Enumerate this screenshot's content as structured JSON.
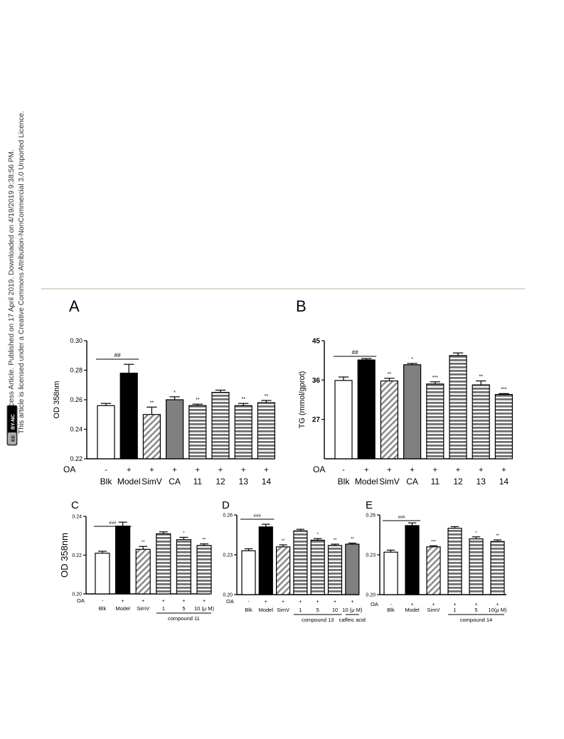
{
  "sidebar": {
    "line1": "Open Access Article. Published on 17 April 2019. Downloaded on 4/19/2019 9:38:56 PM.",
    "line2": "This article is licensed under a Creative Commons Attribution-NonCommercial 3.0 Unported Licence.",
    "badge_cc": "cc",
    "badge_text": "BY-NC"
  },
  "colors": {
    "white": "#ffffff",
    "black": "#000000",
    "gray": "#808080",
    "hatch": "#9a9a9a",
    "stripe": "#7a7a7a"
  },
  "chart_data": [
    {
      "panel": "A",
      "type": "bar",
      "ylabel": "OD 358nm",
      "ylim": [
        0.22,
        0.3
      ],
      "yticks": [
        "0.22",
        "0.24",
        "0.26",
        "0.28",
        "0.30"
      ],
      "categories": [
        "Blk",
        "Model",
        "SimV",
        "CA",
        "11",
        "12",
        "13",
        "14"
      ],
      "oa_label": "OA",
      "oa": [
        "-",
        "+",
        "+",
        "+",
        "+",
        "+",
        "+",
        "+"
      ],
      "values": [
        0.256,
        0.278,
        0.25,
        0.26,
        0.256,
        0.265,
        0.256,
        0.258
      ],
      "errors": [
        0.0015,
        0.006,
        0.005,
        0.002,
        0.001,
        0.0015,
        0.0015,
        0.0015
      ],
      "fills": [
        "white",
        "black",
        "hatch",
        "gray",
        "stripe",
        "stripe",
        "stripe",
        "stripe"
      ],
      "sig": [
        "",
        "",
        "**",
        "*",
        "**",
        "",
        "**",
        "**"
      ],
      "bracket": {
        "label": "##",
        "from": 0,
        "to": 1
      }
    },
    {
      "panel": "B",
      "type": "bar",
      "ylabel": "TG (mmol/gprot)",
      "ylim": [
        18,
        45
      ],
      "yticks": [
        "27",
        "36",
        "45"
      ],
      "categories": [
        "Blk",
        "Model",
        "SimV",
        "CA",
        "11",
        "12",
        "13",
        "14"
      ],
      "oa_label": "OA",
      "oa": [
        "-",
        "+",
        "+",
        "+",
        "+",
        "+",
        "+",
        "+"
      ],
      "values": [
        35.9,
        40.6,
        35.8,
        39.5,
        35.1,
        41.6,
        34.9,
        32.7
      ],
      "errors": [
        0.8,
        0.3,
        0.6,
        0.3,
        0.5,
        0.6,
        0.9,
        0.2
      ],
      "fills": [
        "white",
        "black",
        "hatch",
        "gray",
        "stripe",
        "stripe",
        "stripe",
        "stripe"
      ],
      "sig": [
        "",
        "",
        "**",
        "*",
        "***",
        "",
        "**",
        "***"
      ],
      "bracket": {
        "label": "##",
        "from": 0,
        "to": 1
      }
    },
    {
      "panel": "C",
      "type": "bar",
      "ylabel": "OD 358nm",
      "ylim": [
        0.2,
        0.24
      ],
      "yticks": [
        "0.20",
        "0.22",
        "0.24"
      ],
      "categories": [
        "Blk",
        "Model",
        "SimV",
        "1",
        "5",
        "10 (μ M)"
      ],
      "oa_label": "OA",
      "oa": [
        "-",
        "+",
        "+",
        "+",
        "+",
        "+"
      ],
      "values": [
        0.221,
        0.235,
        0.223,
        0.231,
        0.228,
        0.225
      ],
      "errors": [
        0.001,
        0.002,
        0.0015,
        0.001,
        0.0012,
        0.0008
      ],
      "fills": [
        "white",
        "black",
        "hatch",
        "stripe",
        "stripe",
        "stripe"
      ],
      "sig": [
        "",
        "",
        "**",
        "",
        "*",
        "**"
      ],
      "bracket": {
        "label": "###",
        "from": 0,
        "to": 1
      },
      "groups": [
        {
          "label": "compound 11",
          "from": 3,
          "to": 5
        }
      ]
    },
    {
      "panel": "D",
      "type": "bar",
      "ylabel": "",
      "ylim": [
        0.2,
        0.26
      ],
      "yticks": [
        "0.20",
        "0.23",
        "0.26"
      ],
      "categories": [
        "Blk",
        "Model",
        "SimV",
        "1",
        "5",
        "10",
        "10 (μ M)"
      ],
      "oa_label": "OA",
      "oa": [
        "-",
        "+",
        "+",
        "+",
        "+",
        "+",
        "+"
      ],
      "values": [
        0.233,
        0.251,
        0.236,
        0.248,
        0.241,
        0.237,
        0.238
      ],
      "errors": [
        0.0015,
        0.002,
        0.0015,
        0.0012,
        0.0012,
        0.001,
        0.0008
      ],
      "fills": [
        "white",
        "black",
        "hatch",
        "stripe",
        "stripe",
        "stripe",
        "gray"
      ],
      "sig": [
        "",
        "",
        "**",
        "",
        "*",
        "**",
        "**"
      ],
      "bracket": {
        "label": "###",
        "from": 0,
        "to": 1
      },
      "groups": [
        {
          "label": "compound 13",
          "from": 3,
          "to": 5
        },
        {
          "label": "caffeic acid",
          "from": 6,
          "to": 6
        }
      ]
    },
    {
      "panel": "E",
      "type": "bar",
      "ylabel": "",
      "ylim": [
        0.2,
        0.26
      ],
      "yticks": [
        "0.20",
        "0.23",
        "0.26"
      ],
      "categories": [
        "Blk",
        "Model",
        "SimV",
        "1",
        "5",
        "10(μ M)"
      ],
      "oa_label": "OA",
      "oa": [
        "-",
        "+",
        "+",
        "+",
        "+",
        "+"
      ],
      "values": [
        0.232,
        0.252,
        0.236,
        0.25,
        0.242,
        0.24
      ],
      "errors": [
        0.0015,
        0.002,
        0.0008,
        0.0012,
        0.0015,
        0.0012
      ],
      "fills": [
        "white",
        "black",
        "hatch",
        "stripe",
        "stripe",
        "stripe"
      ],
      "sig": [
        "",
        "",
        "***",
        "",
        "*",
        "**"
      ],
      "bracket": {
        "label": "###",
        "from": 0,
        "to": 1
      },
      "groups": [
        {
          "label": "compound 14",
          "from": 3,
          "to": 5
        }
      ]
    }
  ]
}
